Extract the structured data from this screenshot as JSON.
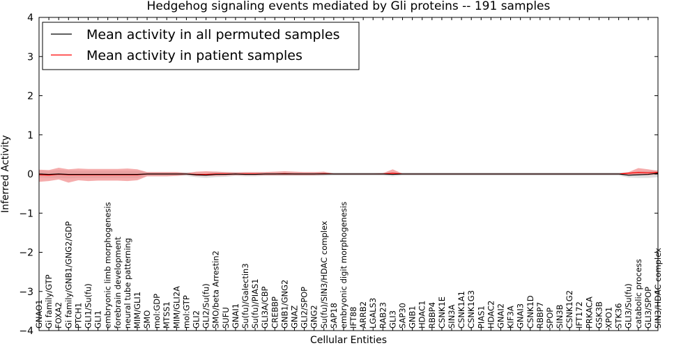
{
  "chart_data": {
    "type": "line",
    "title": "Hedgehog signaling events mediated by Gli proteins -- 191 samples",
    "xlabel": "Cellular Entities",
    "ylabel": "Inferred Activity",
    "ylim": [
      -4,
      4
    ],
    "yticks": [
      4,
      3,
      2,
      1,
      0,
      -1,
      -2,
      -3,
      -4
    ],
    "ytick_labels": [
      "4",
      "3",
      "2",
      "1",
      "0",
      "−1",
      "−2",
      "−3",
      "−4"
    ],
    "legend_position": "top-left",
    "categories": [
      "GNAO1",
      "Gi family/GTP",
      "FOXA2",
      "Gi family/GNB1/GNG2/GDP",
      "PTCH1",
      "GLI1/Su(fu)",
      "GLI1",
      "embryonic limb morphogenesis",
      "forebrain development",
      "neural tube patterning",
      "MIM/GLI1",
      "SMO",
      "mol:GDP",
      "MTSS1",
      "MIM/GLI2A",
      "mol:GTP",
      "GLI2",
      "GLI2/Su(fu)",
      "SMO/beta Arrestin2",
      "SUFU",
      "GNAI1",
      "Su(fu)/Galectin3",
      "Su(fu)/PIAS1",
      "GLI3A/CBP",
      "CREBBP",
      "GNB1/GNG2",
      "GNAZ",
      "GLI2/SPOP",
      "GNG2",
      "Su(fu)/SIN3/HDAC complex",
      "SAP18",
      "embryonic digit morphogenesis",
      "IFT88",
      "ARRB2",
      "LGALS3",
      "RAB23",
      "GLI3",
      "SAP30",
      "GNB1",
      "HDAC1",
      "RBBP4",
      "CSNK1E",
      "SIN3A",
      "CSNK1A1",
      "CSNK1G3",
      "PIAS1",
      "HDAC2",
      "GNAI2",
      "KIF3A",
      "GNAI3",
      "CSNK1D",
      "RBBP7",
      "SPOP",
      "SIN3B",
      "CSNK1G2",
      "IFT172",
      "PRKACA",
      "GSK3B",
      "XPO1",
      "STK36",
      "GLI3/Su(fu)",
      "catabolic process",
      "GLI3/SPOP",
      "SIN3/HDAC complex"
    ],
    "series": [
      {
        "name": "Mean activity in all permuted samples",
        "color": "#000000",
        "band_color": "#c8c8c8",
        "values": [
          0.0,
          -0.01,
          0.0,
          -0.01,
          -0.01,
          -0.01,
          -0.01,
          -0.01,
          -0.01,
          -0.01,
          -0.01,
          0.0,
          0.0,
          0.0,
          0.0,
          0.0,
          -0.02,
          -0.03,
          -0.01,
          -0.01,
          0.0,
          -0.01,
          -0.01,
          0.0,
          0.0,
          0.0,
          0.0,
          0.0,
          0.0,
          0.0,
          0.0,
          0.0,
          0.0,
          0.0,
          0.0,
          0.0,
          -0.01,
          0.0,
          0.0,
          0.0,
          0.0,
          0.0,
          0.0,
          0.0,
          0.0,
          0.0,
          0.0,
          0.0,
          0.0,
          0.0,
          0.0,
          0.0,
          0.0,
          0.0,
          0.0,
          0.0,
          0.0,
          0.0,
          0.0,
          0.0,
          -0.03,
          -0.02,
          -0.01,
          0.02
        ],
        "lower": [
          -0.09,
          -0.1,
          -0.1,
          -0.11,
          -0.1,
          -0.1,
          -0.1,
          -0.1,
          -0.1,
          -0.1,
          -0.1,
          -0.05,
          -0.05,
          -0.05,
          -0.05,
          -0.05,
          -0.08,
          -0.1,
          -0.08,
          -0.07,
          -0.05,
          -0.06,
          -0.06,
          -0.05,
          -0.05,
          -0.05,
          -0.05,
          -0.05,
          -0.05,
          -0.05,
          -0.04,
          -0.04,
          -0.04,
          -0.04,
          -0.04,
          -0.04,
          -0.06,
          -0.04,
          -0.04,
          -0.04,
          -0.04,
          -0.04,
          -0.04,
          -0.04,
          -0.04,
          -0.04,
          -0.04,
          -0.04,
          -0.04,
          -0.04,
          -0.04,
          -0.04,
          -0.04,
          -0.04,
          -0.04,
          -0.04,
          -0.04,
          -0.04,
          -0.04,
          -0.04,
          -0.09,
          -0.1,
          -0.1,
          -0.08
        ],
        "upper": [
          0.09,
          0.08,
          0.1,
          0.09,
          0.08,
          0.08,
          0.08,
          0.08,
          0.08,
          0.08,
          0.08,
          0.05,
          0.05,
          0.05,
          0.05,
          0.05,
          0.04,
          0.04,
          0.06,
          0.05,
          0.05,
          0.04,
          0.04,
          0.05,
          0.05,
          0.05,
          0.05,
          0.05,
          0.05,
          0.05,
          0.04,
          0.04,
          0.04,
          0.04,
          0.04,
          0.04,
          0.04,
          0.04,
          0.04,
          0.04,
          0.04,
          0.04,
          0.04,
          0.04,
          0.04,
          0.04,
          0.04,
          0.04,
          0.04,
          0.04,
          0.04,
          0.04,
          0.04,
          0.04,
          0.04,
          0.04,
          0.04,
          0.04,
          0.04,
          0.04,
          0.04,
          0.06,
          0.08,
          0.1
        ]
      },
      {
        "name": "Mean activity in patient samples",
        "color": "#ff0000",
        "band_color": "#f08080",
        "values": [
          -0.02,
          -0.03,
          -0.01,
          -0.02,
          -0.02,
          -0.02,
          -0.02,
          -0.02,
          -0.02,
          -0.02,
          -0.02,
          0.0,
          0.0,
          0.0,
          0.0,
          0.0,
          -0.01,
          -0.01,
          0.0,
          0.0,
          0.0,
          0.0,
          0.0,
          0.0,
          0.0,
          0.01,
          0.0,
          0.0,
          0.0,
          0.01,
          0.0,
          0.0,
          0.0,
          0.0,
          0.0,
          0.0,
          0.02,
          0.0,
          0.0,
          0.0,
          0.0,
          0.0,
          0.0,
          0.0,
          0.0,
          0.0,
          0.0,
          0.0,
          0.0,
          0.0,
          0.0,
          0.0,
          0.0,
          0.0,
          0.0,
          0.0,
          0.0,
          0.0,
          0.0,
          0.0,
          0.02,
          0.04,
          0.03,
          0.04
        ],
        "lower": [
          -0.2,
          -0.18,
          -0.14,
          -0.22,
          -0.16,
          -0.18,
          -0.17,
          -0.17,
          -0.17,
          -0.18,
          -0.16,
          -0.06,
          -0.06,
          -0.06,
          -0.05,
          -0.02,
          -0.05,
          -0.05,
          -0.05,
          -0.04,
          -0.03,
          -0.03,
          -0.03,
          -0.03,
          -0.03,
          -0.03,
          -0.03,
          -0.03,
          -0.03,
          -0.02,
          -0.01,
          -0.01,
          -0.01,
          -0.01,
          -0.01,
          -0.01,
          -0.02,
          -0.01,
          -0.01,
          -0.01,
          -0.01,
          -0.01,
          -0.01,
          -0.01,
          -0.01,
          -0.01,
          -0.01,
          -0.01,
          -0.01,
          -0.01,
          -0.01,
          -0.01,
          -0.01,
          -0.01,
          -0.01,
          -0.01,
          -0.01,
          -0.01,
          -0.01,
          -0.01,
          -0.02,
          -0.02,
          -0.03,
          -0.01
        ],
        "upper": [
          0.11,
          0.1,
          0.16,
          0.12,
          0.14,
          0.13,
          0.13,
          0.13,
          0.13,
          0.14,
          0.12,
          0.05,
          0.05,
          0.05,
          0.05,
          0.02,
          0.06,
          0.07,
          0.06,
          0.05,
          0.04,
          0.05,
          0.05,
          0.05,
          0.06,
          0.07,
          0.06,
          0.05,
          0.05,
          0.06,
          0.01,
          0.01,
          0.01,
          0.01,
          0.01,
          0.02,
          0.12,
          0.01,
          0.01,
          0.01,
          0.01,
          0.01,
          0.01,
          0.01,
          0.01,
          0.01,
          0.01,
          0.01,
          0.01,
          0.01,
          0.01,
          0.01,
          0.01,
          0.01,
          0.01,
          0.01,
          0.01,
          0.01,
          0.01,
          0.01,
          0.05,
          0.15,
          0.12,
          0.08
        ]
      }
    ]
  }
}
